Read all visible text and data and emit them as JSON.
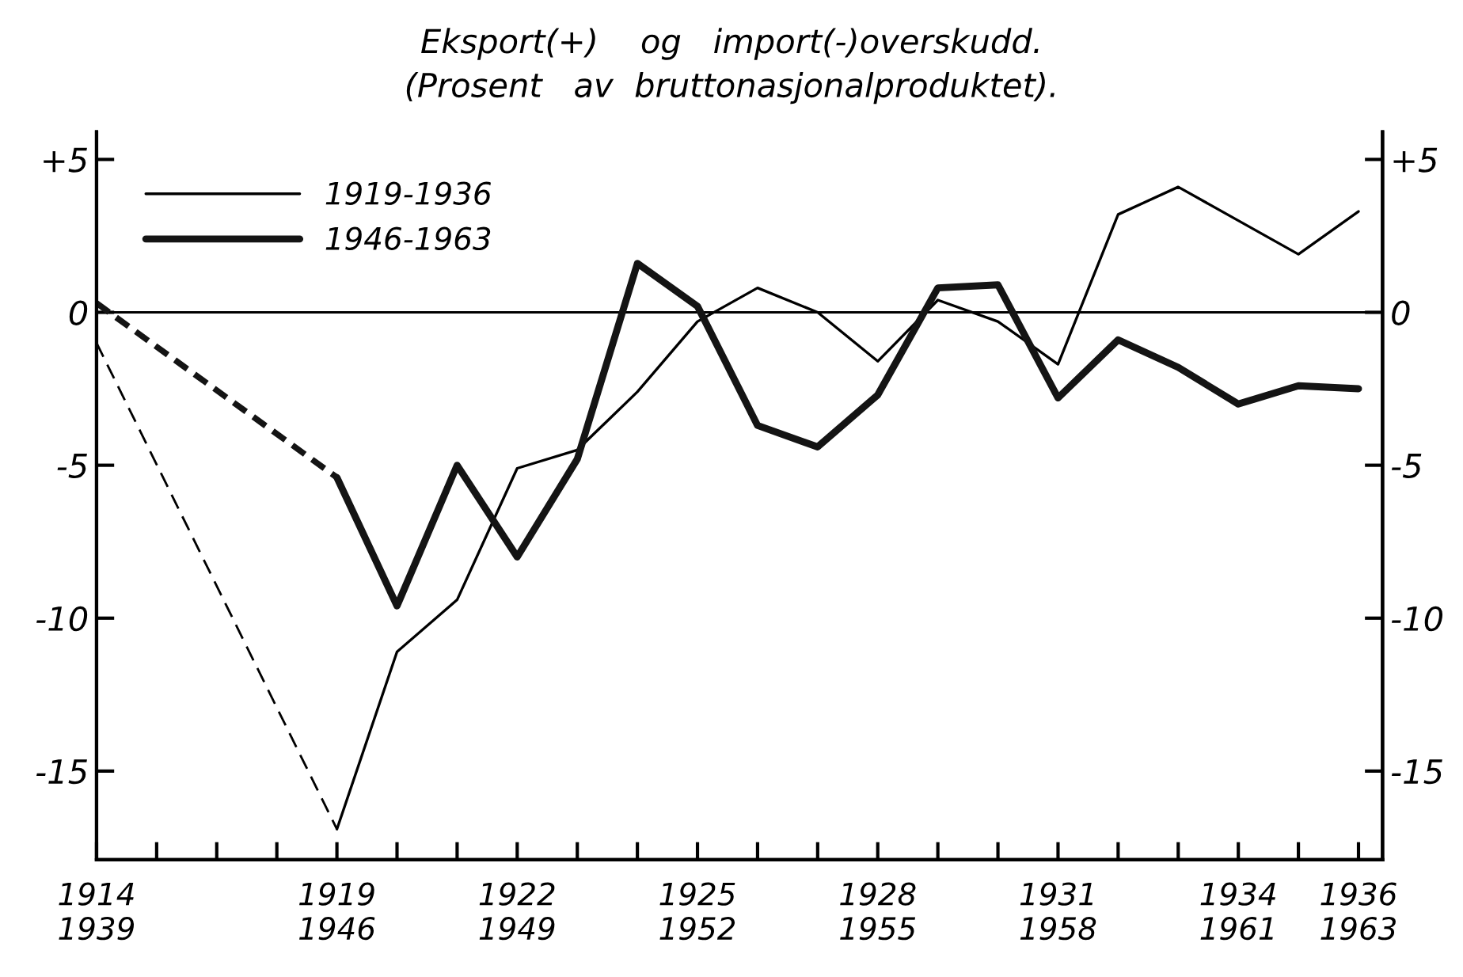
{
  "chart_data": {
    "type": "line",
    "title": "Eksport(+)    og   import(-)overskudd.",
    "subtitle": "(Prosent   av  bruttonasjonalproduktet).",
    "categories": [
      "1914\n1939",
      null,
      null,
      null,
      "1919\n1946",
      null,
      null,
      "1922\n1949",
      null,
      null,
      "1925\n1952",
      null,
      null,
      "1928\n1955",
      null,
      null,
      "1931\n1958",
      null,
      null,
      "1934\n1961",
      null,
      "1936\n1963"
    ],
    "series": [
      {
        "name": "1919-1936",
        "color": "#000000",
        "line_style": "solid",
        "values": [
          null,
          null,
          null,
          null,
          -16.9,
          -11.1,
          -9.4,
          -5.1,
          -4.5,
          -2.6,
          -0.3,
          0.8,
          0.0,
          -1.6,
          0.4,
          -0.3,
          -1.7,
          3.2,
          4.1,
          3.0,
          1.9,
          3.3
        ]
      },
      {
        "name": "1946-1963",
        "color": "#141414",
        "line_style": "solid",
        "values": [
          null,
          null,
          null,
          null,
          -5.4,
          -9.6,
          -5.0,
          -8.0,
          -4.8,
          1.6,
          0.2,
          -3.7,
          -4.4,
          -2.7,
          0.8,
          0.9,
          -2.8,
          -0.9,
          -1.8,
          -3.0,
          -2.4,
          -2.5
        ]
      },
      {
        "color": "#000000",
        "line_style": "dashed",
        "values": [
          -1.0,
          null,
          null,
          null,
          -16.9,
          null,
          null,
          null,
          null,
          null,
          null,
          null,
          null,
          null,
          null,
          null,
          null,
          null,
          null,
          null,
          null,
          null
        ]
      },
      {
        "color": "#141414",
        "line_style": "dashed",
        "values": [
          0.3,
          null,
          null,
          null,
          -5.4,
          null,
          null,
          null,
          null,
          null,
          null,
          null,
          null,
          null,
          null,
          null,
          null,
          null,
          null,
          null,
          null,
          null
        ]
      }
    ],
    "ylim": [
      -17.9,
      5.9
    ],
    "yticks": [
      -15,
      -10,
      -5,
      0,
      {
        "value": 5,
        "label": "+5"
      }
    ],
    "y2lim": [
      -17.9,
      5.9
    ],
    "y2ticks": [
      -15,
      -10,
      -5,
      0,
      {
        "value": 5,
        "label": "+5"
      }
    ],
    "ref_lines": [
      {
        "axis": "y",
        "value": 0,
        "label": null,
        "color": "#000000"
      }
    ],
    "legend": "top left",
    "grid": false,
    "marker": "none"
  }
}
